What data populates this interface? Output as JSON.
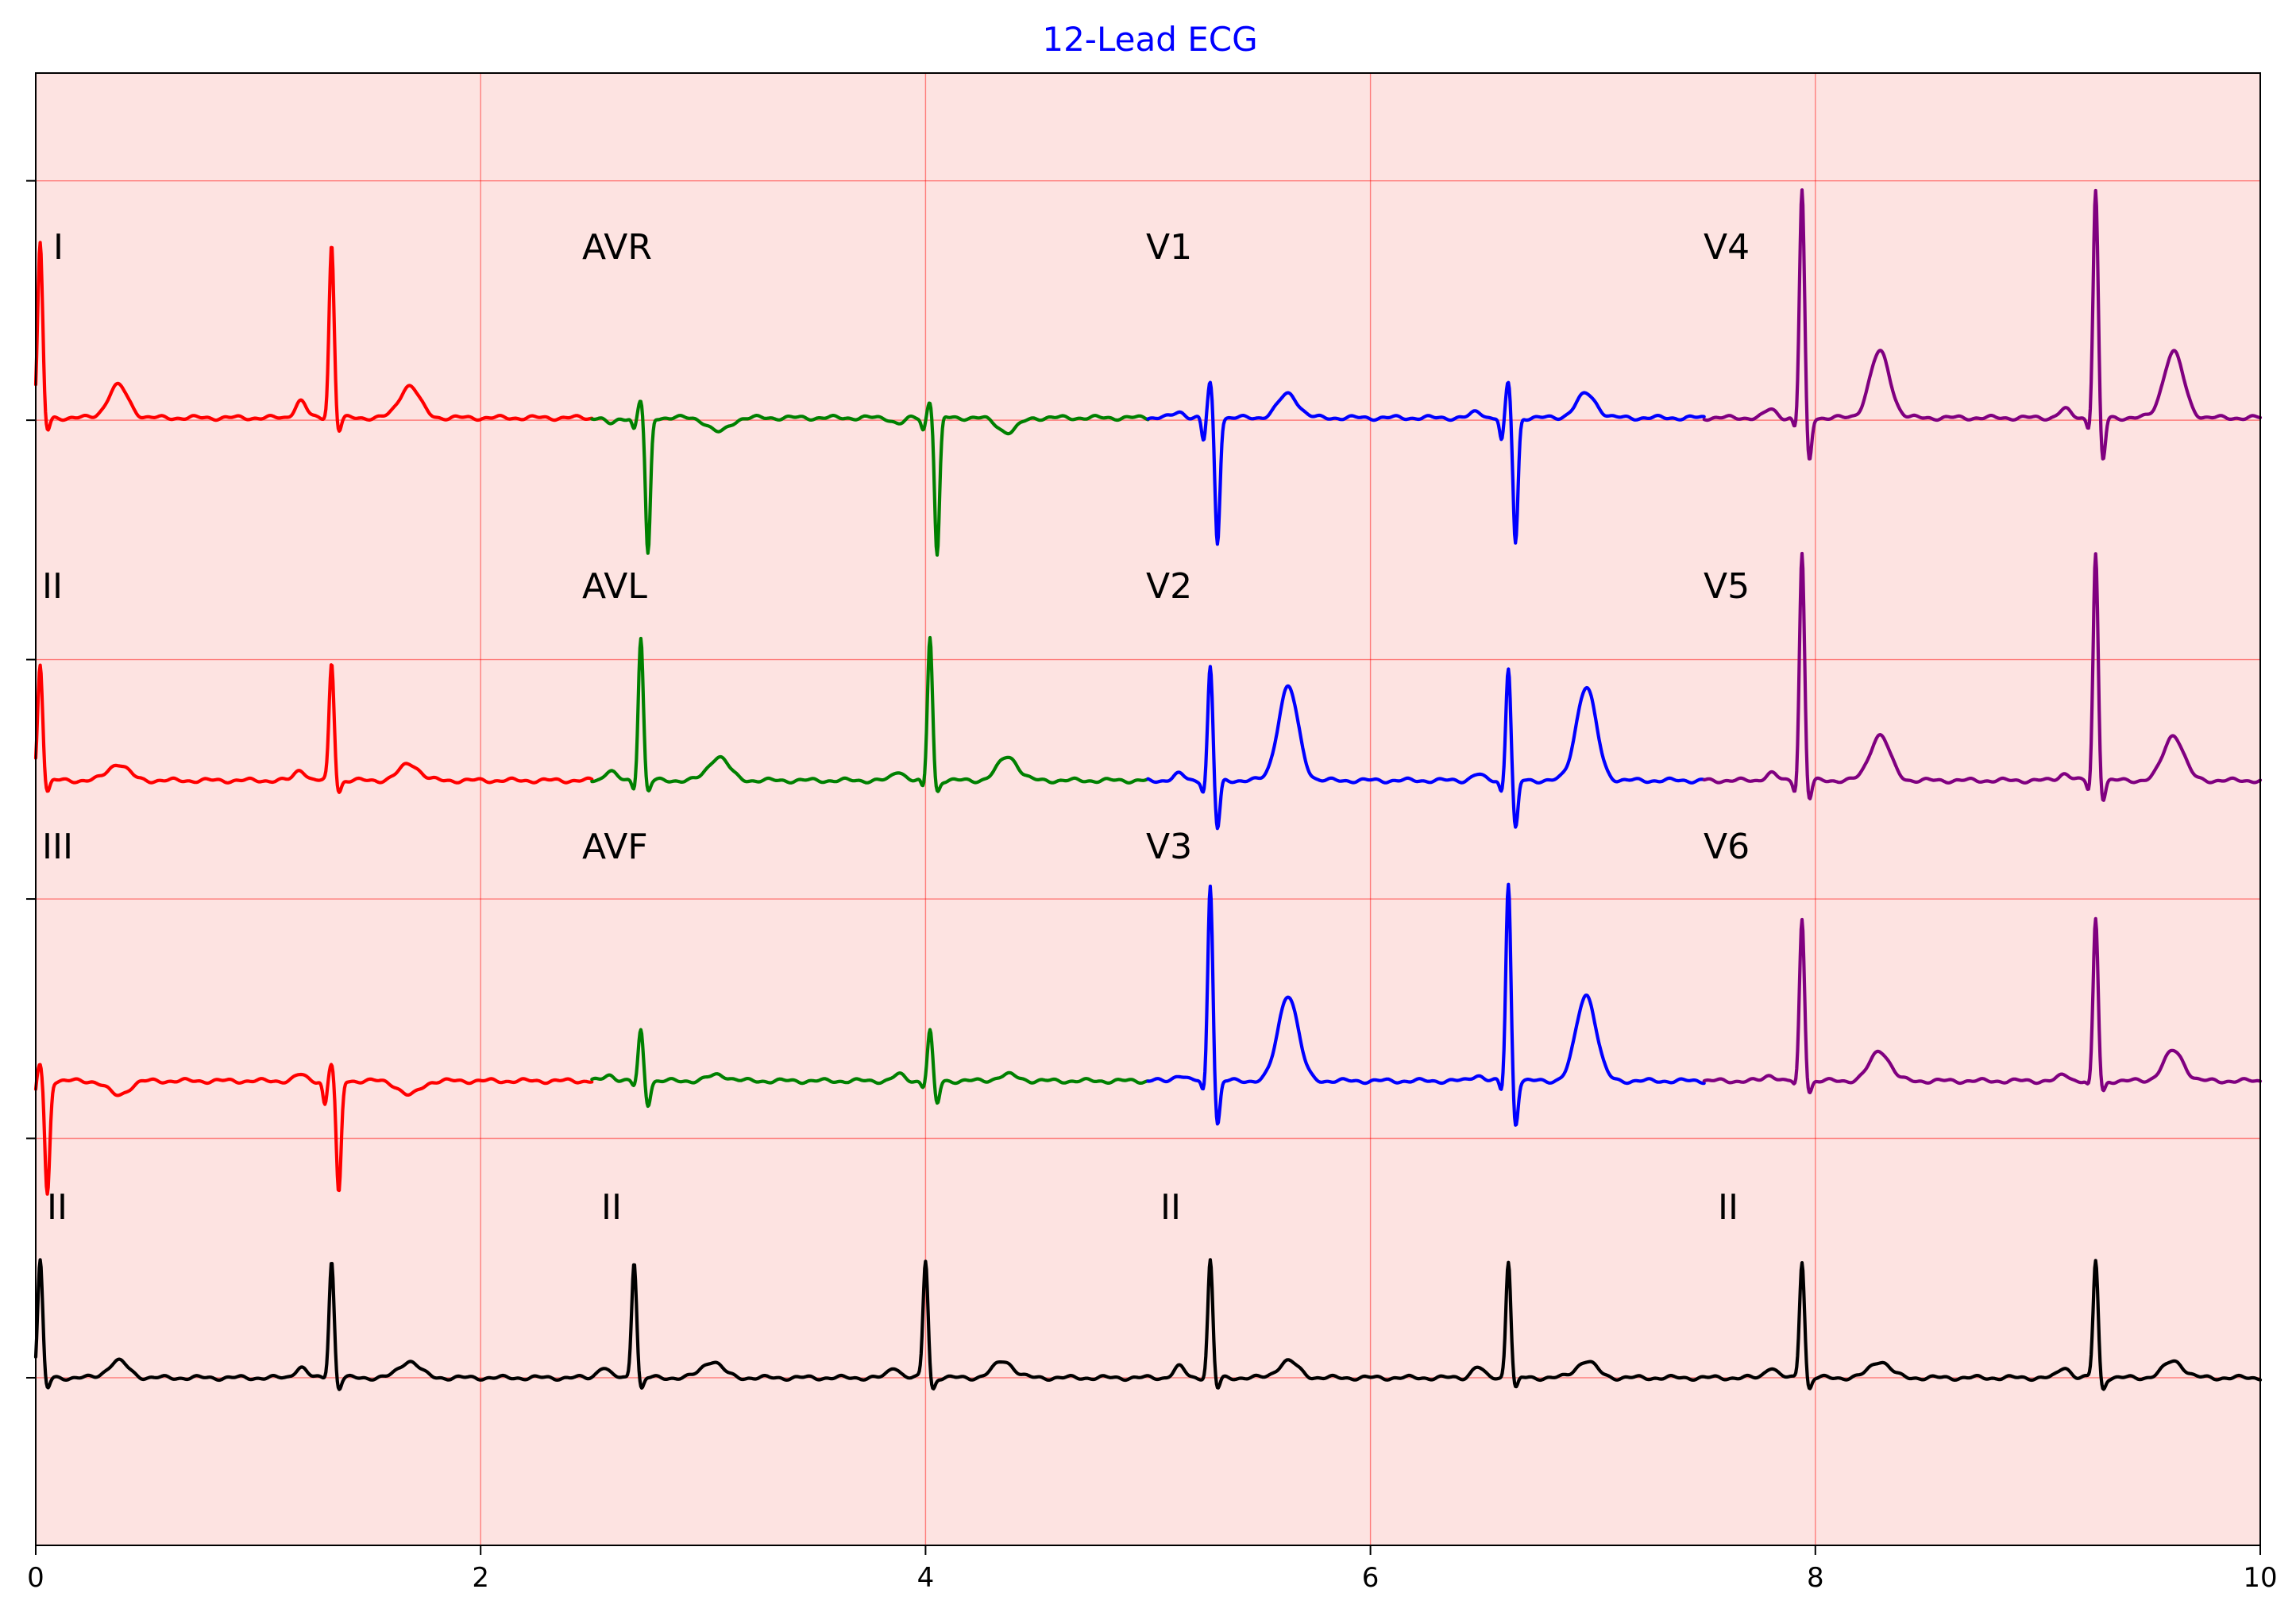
{
  "chart_data": {
    "type": "line",
    "title": "12-Lead ECG",
    "xlabel": "",
    "ylabel": "",
    "xlim": [
      0,
      10
    ],
    "ylim": [
      -11.4,
      0.9
    ],
    "x_ticks": [
      0,
      2,
      4,
      6,
      8,
      10
    ],
    "x_tick_labels": [
      "0",
      "2",
      "4",
      "6",
      "8",
      "10"
    ],
    "y_ticks": [
      -10,
      -8,
      -6,
      -4,
      -2,
      0
    ],
    "grid": true,
    "background": "#fde3e1",
    "grid_color": "#ff0000",
    "legend": "none",
    "duration_per_column_s": 2.5,
    "row_baselines": [
      -1.98,
      -5.01,
      -7.52,
      -10.0
    ],
    "leads": [
      {
        "name": "I",
        "column": 0,
        "row": 0,
        "color": "#ff0000",
        "r": 1.45,
        "q": 0.0,
        "s": -0.12,
        "p": 0.14,
        "t": 0.27,
        "beats": [
          0.02,
          1.33
        ]
      },
      {
        "name": "AVR",
        "column": 1,
        "row": 0,
        "color": "#008000",
        "r": 0.15,
        "q": -0.1,
        "s": -1.15,
        "p": -0.05,
        "t": -0.12,
        "beats": [
          2.72,
          4.02
        ]
      },
      {
        "name": "V1",
        "column": 2,
        "row": 0,
        "color": "#0000ff",
        "r": 0.3,
        "q": -0.2,
        "s": -1.05,
        "p": 0.05,
        "t": 0.2,
        "beats": [
          5.28,
          6.62
        ]
      },
      {
        "name": "V4",
        "column": 3,
        "row": 0,
        "color": "#800080",
        "r": 1.9,
        "q": -0.1,
        "s": -0.38,
        "p": 0.07,
        "t": 0.55,
        "beats": [
          7.94,
          9.26
        ]
      },
      {
        "name": "II",
        "column": 0,
        "row": 1,
        "color": "#ff0000",
        "r": 0.98,
        "q": 0.0,
        "s": -0.1,
        "p": 0.09,
        "t": 0.14,
        "beats": [
          0.02,
          1.33
        ]
      },
      {
        "name": "AVL",
        "column": 1,
        "row": 1,
        "color": "#008000",
        "r": 1.2,
        "q": -0.08,
        "s": -0.1,
        "p": 0.08,
        "t": 0.2,
        "beats": [
          2.72,
          4.02
        ]
      },
      {
        "name": "V2",
        "column": 2,
        "row": 1,
        "color": "#0000ff",
        "r": 0.95,
        "q": -0.1,
        "s": -0.42,
        "p": 0.05,
        "t": 0.78,
        "beats": [
          5.28,
          6.62
        ]
      },
      {
        "name": "V5",
        "column": 3,
        "row": 1,
        "color": "#800080",
        "r": 1.9,
        "q": -0.1,
        "s": -0.17,
        "p": 0.06,
        "t": 0.38,
        "beats": [
          7.94,
          9.26
        ]
      },
      {
        "name": "III",
        "column": 0,
        "row": 2,
        "color": "#ff0000",
        "r": 0.15,
        "q": -0.2,
        "s": -0.95,
        "p": 0.05,
        "t": -0.12,
        "beats": [
          0.02,
          1.33
        ]
      },
      {
        "name": "AVF",
        "column": 1,
        "row": 2,
        "color": "#008000",
        "r": 0.42,
        "q": -0.05,
        "s": -0.2,
        "p": 0.05,
        "t": 0.05,
        "beats": [
          2.72,
          4.02
        ]
      },
      {
        "name": "V3",
        "column": 2,
        "row": 2,
        "color": "#0000ff",
        "r": 1.65,
        "q": -0.1,
        "s": -0.38,
        "p": 0.05,
        "t": 0.72,
        "beats": [
          5.28,
          6.62
        ]
      },
      {
        "name": "V6",
        "column": 3,
        "row": 2,
        "color": "#800080",
        "r": 1.35,
        "q": -0.05,
        "s": -0.1,
        "p": 0.05,
        "t": 0.25,
        "beats": [
          7.94,
          9.26
        ]
      },
      {
        "name": "II",
        "column": 0,
        "row": 3,
        "color": "#000000",
        "r": 0.98,
        "q": 0.0,
        "s": -0.1,
        "p": 0.09,
        "t": 0.14,
        "beats": [
          0.02,
          1.33,
          2.69,
          4.0,
          5.28,
          6.62,
          7.94,
          9.26
        ]
      },
      {
        "name": "II",
        "column": 1,
        "row": 3,
        "color": "#000000",
        "r": 0.0,
        "q": 0.0,
        "s": 0.0,
        "p": 0.0,
        "t": 0.0,
        "beats": []
      },
      {
        "name": "II",
        "column": 2,
        "row": 3,
        "color": "#000000",
        "r": 0.0,
        "q": 0.0,
        "s": 0.0,
        "p": 0.0,
        "t": 0.0,
        "beats": []
      },
      {
        "name": "II",
        "column": 3,
        "row": 3,
        "color": "#000000",
        "r": 0.0,
        "q": 0.0,
        "s": 0.0,
        "p": 0.0,
        "t": 0.0,
        "beats": []
      }
    ]
  }
}
